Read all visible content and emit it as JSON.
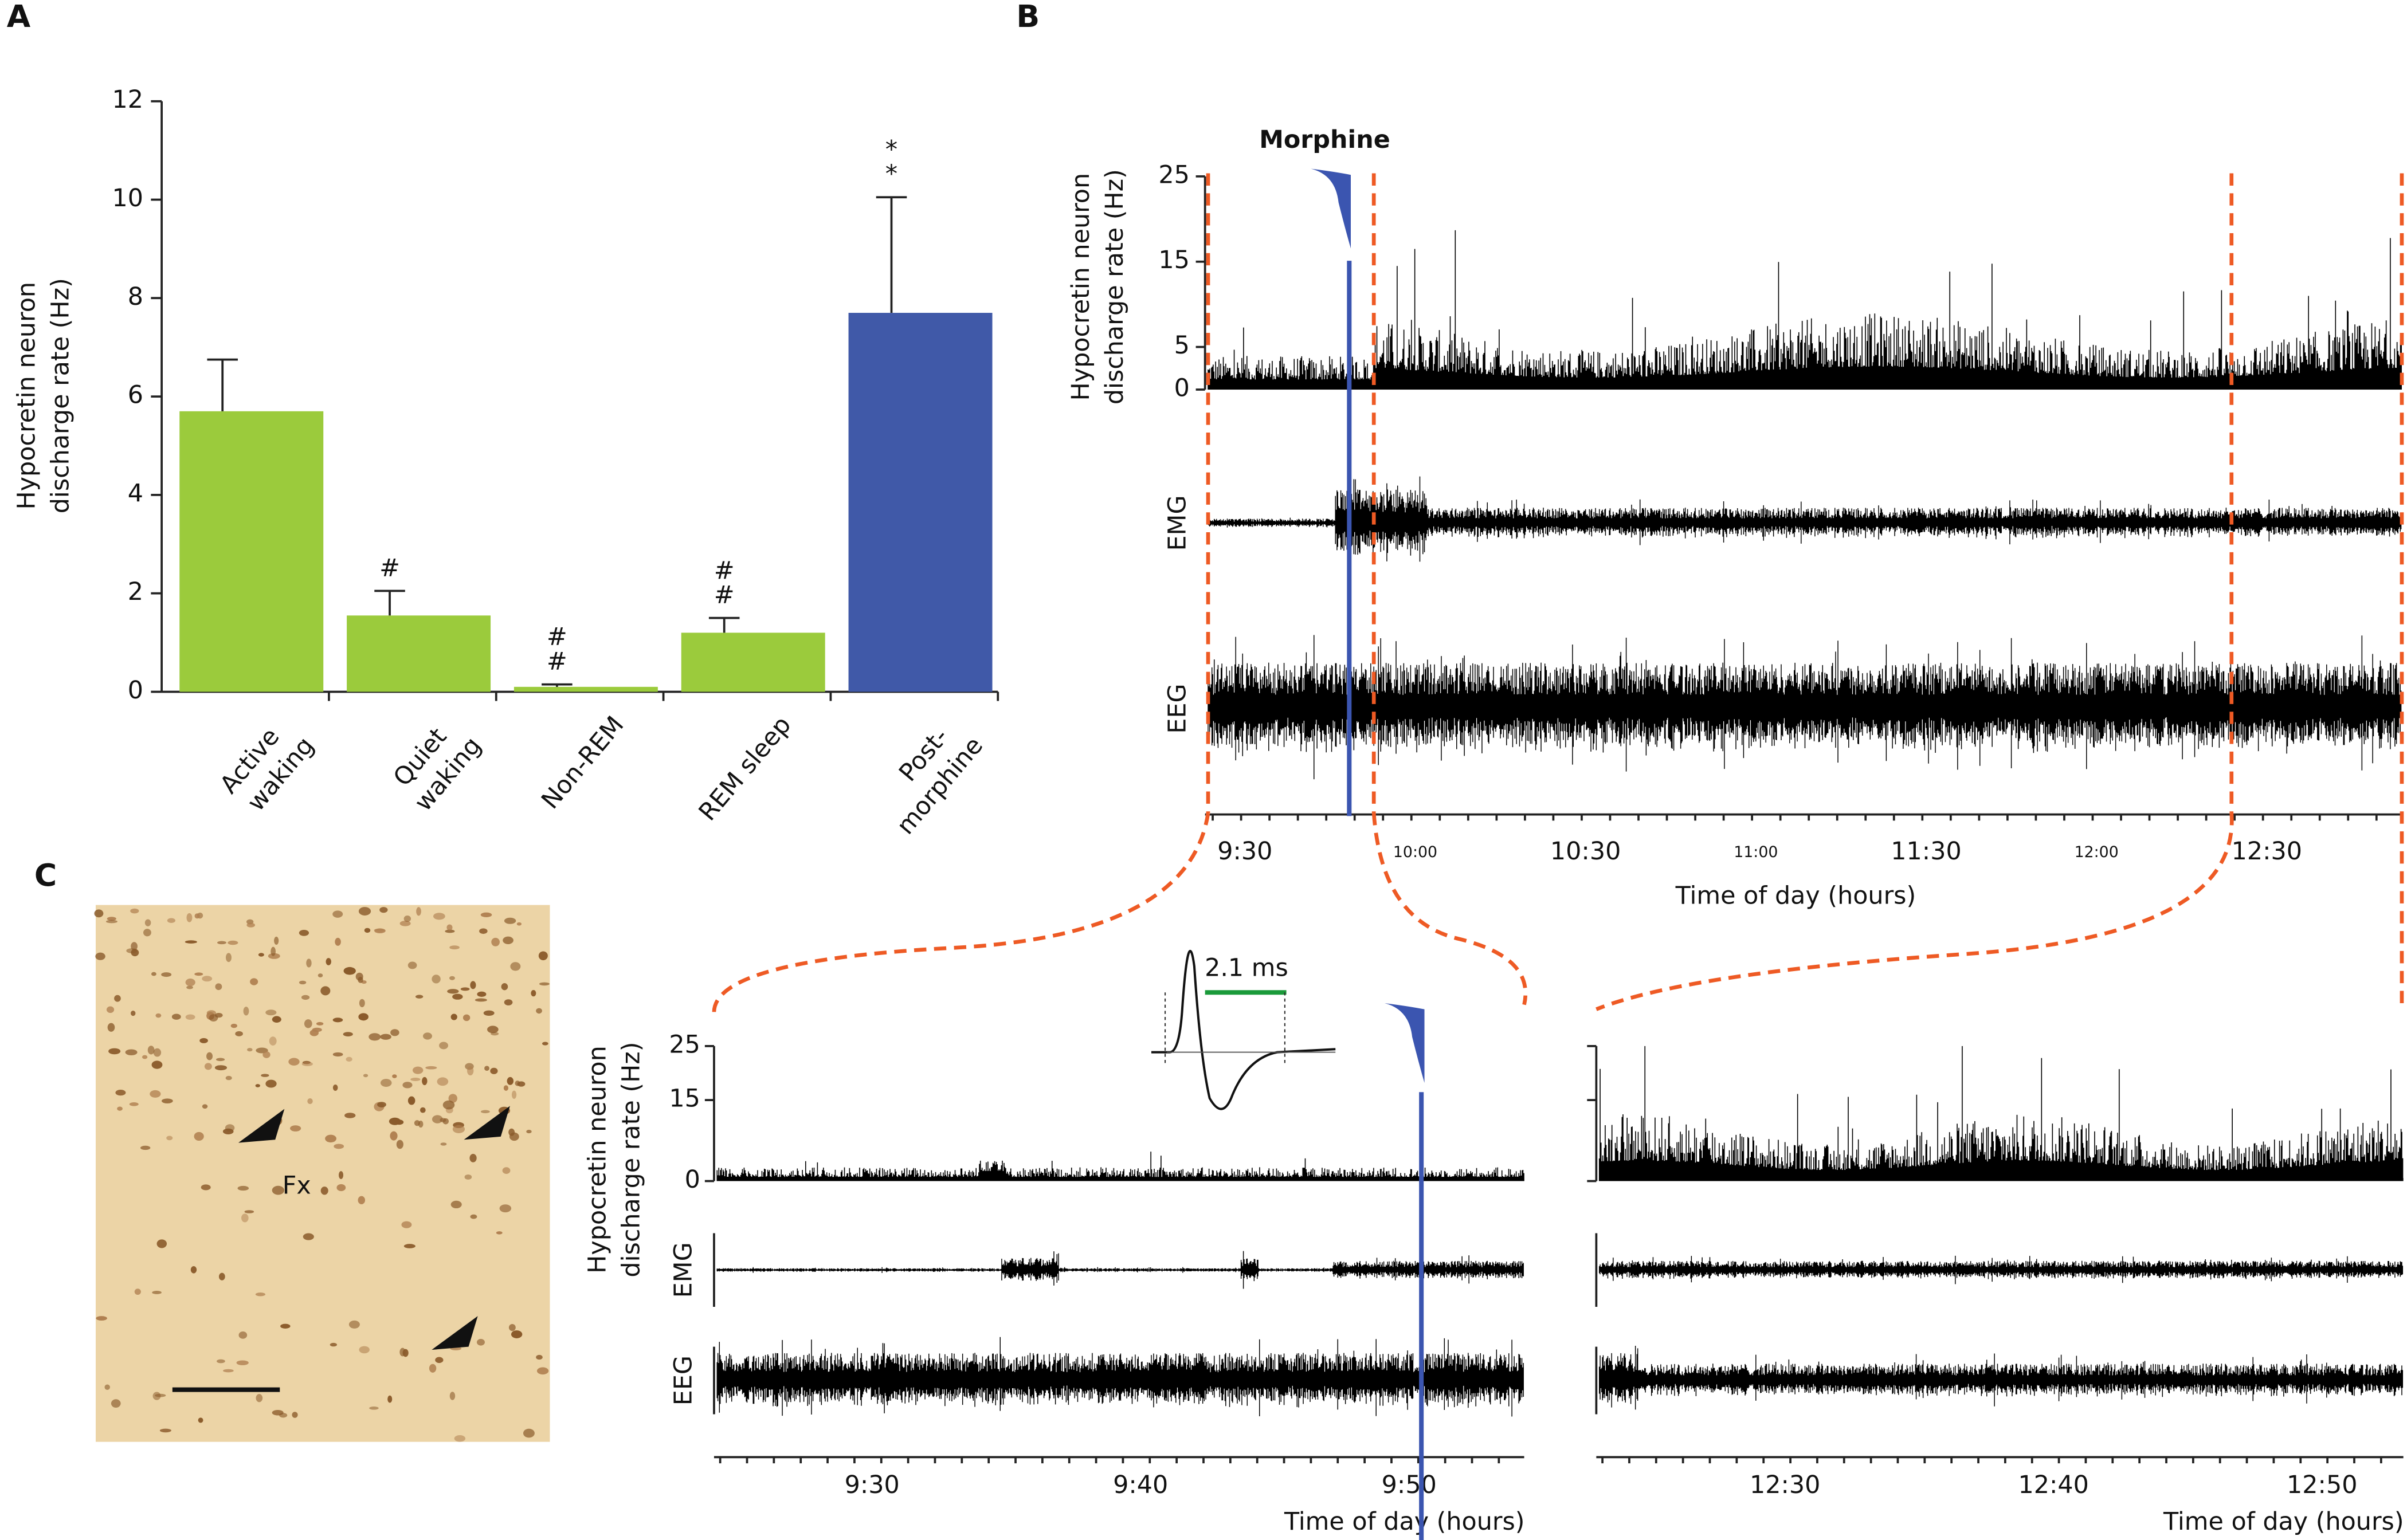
{
  "panels": {
    "a": "A",
    "b": "B",
    "c": "C"
  },
  "image": {
    "label": "Fx"
  },
  "chart_data": [
    {
      "type": "bar",
      "ylabel": [
        "Hypocretin neuron",
        "discharge rate (Hz)"
      ],
      "categories": [
        [
          "Active",
          "waking"
        ],
        [
          "Quiet",
          "waking"
        ],
        [
          "Non-REM"
        ],
        [
          "REM sleep"
        ],
        [
          "Post-",
          "morphine"
        ]
      ],
      "values": [
        5.7,
        1.55,
        0.1,
        1.2,
        7.7
      ],
      "errors": [
        1.05,
        0.5,
        0.05,
        0.3,
        2.35
      ],
      "colors": [
        "#9bcb3c",
        "#9bcb3c",
        "#9bcb3c",
        "#9bcb3c",
        "#4059a8"
      ],
      "annotations": [
        null,
        [
          "#"
        ],
        [
          "#",
          "#"
        ],
        [
          "#",
          "#"
        ],
        [
          "*",
          "*"
        ]
      ],
      "ylim": [
        0,
        12
      ],
      "yticks": [
        0,
        2,
        4,
        6,
        8,
        10,
        12
      ]
    },
    {
      "type": "trace",
      "annotation": "Morphine",
      "ylabel": [
        "Hypocretin neuron",
        "discharge rate (Hz)"
      ],
      "tracks": [
        "EMG",
        "EEG"
      ],
      "ylim": [
        0,
        25
      ],
      "yticks": [
        0,
        5,
        15,
        25
      ],
      "xticks": [
        "9:30",
        "10:00",
        "10:30",
        "11:00",
        "11:30",
        "12:00",
        "12:30"
      ],
      "xlabel": "Time of day (hours)"
    },
    {
      "type": "trace",
      "ylabel": [
        "Hypocretin neuron",
        "discharge rate (Hz)"
      ],
      "tracks": [
        "EMG",
        "EEG"
      ],
      "ylim": [
        0,
        25
      ],
      "yticks": [
        0,
        15,
        25
      ],
      "xticks": [
        "9:30",
        "9:40",
        "9:50"
      ],
      "xlabel": "Time of day (hours)",
      "inset_label": "2.1 ms"
    },
    {
      "type": "trace",
      "xticks": [
        "12:30",
        "12:40",
        "12:50"
      ],
      "xlabel": "Time of day (hours)"
    }
  ]
}
